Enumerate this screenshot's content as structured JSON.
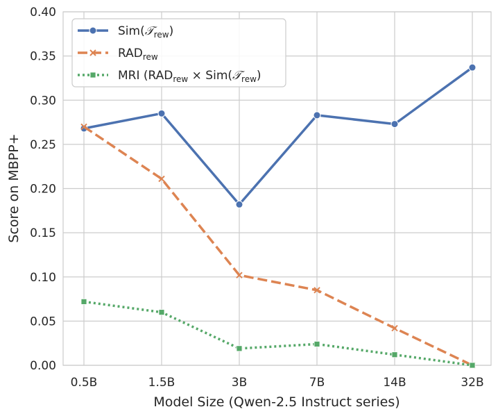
{
  "chart_data": {
    "type": "line",
    "title": "",
    "xlabel": "Model Size (Qwen-2.5 Instruct series)",
    "ylabel": "Score on MBPP+",
    "categories": [
      "0.5B",
      "1.5B",
      "3B",
      "7B",
      "14B",
      "32B"
    ],
    "ylim": [
      0.0,
      0.4
    ],
    "yticks": [
      "0.00",
      "0.05",
      "0.10",
      "0.15",
      "0.20",
      "0.25",
      "0.30",
      "0.35",
      "0.40"
    ],
    "grid": true,
    "legend_position": "top-left",
    "series": [
      {
        "name": "Sim(T_rew)",
        "legend_parts": [
          [
            "Sim(",
            ""
          ],
          [
            "𝒯",
            ""
          ],
          [
            "rew",
            "sub"
          ],
          [
            ")",
            ""
          ]
        ],
        "values": [
          0.268,
          0.285,
          0.182,
          0.283,
          0.273,
          0.337
        ],
        "color": "#4C72B0",
        "dash": "",
        "marker": "circle"
      },
      {
        "name": "RAD_rew",
        "legend_parts": [
          [
            "RAD",
            ""
          ],
          [
            "rew",
            "sub"
          ]
        ],
        "values": [
          0.27,
          0.211,
          0.102,
          0.085,
          0.042,
          0.0
        ],
        "color": "#DD8452",
        "dash": "14,6",
        "marker": "x"
      },
      {
        "name": "MRI (RAD_rew × Sim(T_rew))",
        "legend_parts": [
          [
            "MRI (RAD",
            ""
          ],
          [
            "rew",
            "sub"
          ],
          [
            " × Sim(",
            ""
          ],
          [
            "𝒯",
            ""
          ],
          [
            "rew",
            "sub"
          ],
          [
            ")",
            ""
          ]
        ],
        "values": [
          0.072,
          0.06,
          0.019,
          0.024,
          0.012,
          0.0
        ],
        "color": "#55A868",
        "dash": "3,4",
        "marker": "square"
      }
    ]
  }
}
